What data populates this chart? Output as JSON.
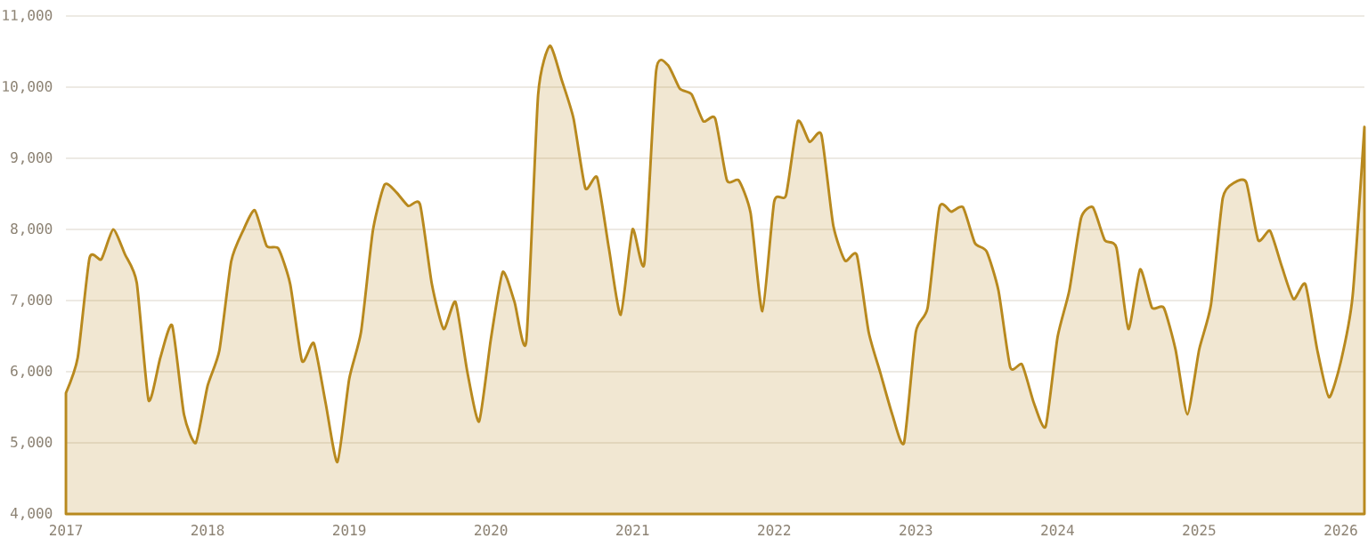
{
  "chart_data": {
    "type": "area",
    "color": "#b8891e",
    "grid": "y",
    "marker": "none",
    "line_style": "solid",
    "x": [
      "2017-01",
      "2017-02",
      "2017-03",
      "2017-04",
      "2017-05",
      "2017-06",
      "2017-07",
      "2017-08",
      "2017-09",
      "2017-10",
      "2017-11",
      "2017-12",
      "2018-01",
      "2018-02",
      "2018-03",
      "2018-04",
      "2018-05",
      "2018-06",
      "2018-07",
      "2018-08",
      "2018-09",
      "2018-10",
      "2018-11",
      "2018-12",
      "2019-01",
      "2019-02",
      "2019-03",
      "2019-04",
      "2019-05",
      "2019-06",
      "2019-07",
      "2019-08",
      "2019-09",
      "2019-10",
      "2019-11",
      "2019-12",
      "2020-01",
      "2020-02",
      "2020-03",
      "2020-04",
      "2020-05",
      "2020-06",
      "2020-07",
      "2020-08",
      "2020-09",
      "2020-10",
      "2020-11",
      "2020-12",
      "2021-01",
      "2021-02",
      "2021-03",
      "2021-04",
      "2021-05",
      "2021-06",
      "2021-07",
      "2021-08",
      "2021-09",
      "2021-10",
      "2021-11",
      "2021-12",
      "2022-01",
      "2022-02",
      "2022-03",
      "2022-04",
      "2022-05",
      "2022-06",
      "2022-07",
      "2022-08",
      "2022-09",
      "2022-10",
      "2022-11",
      "2022-12",
      "2023-01",
      "2023-02",
      "2023-03",
      "2023-04",
      "2023-05",
      "2023-06",
      "2023-07",
      "2023-08",
      "2023-09",
      "2023-10",
      "2023-11",
      "2023-12",
      "2024-01",
      "2024-02",
      "2024-03",
      "2024-04",
      "2024-05",
      "2024-06",
      "2024-07",
      "2024-08",
      "2024-09",
      "2024-10",
      "2024-11",
      "2024-12",
      "2025-01",
      "2025-02",
      "2025-03",
      "2025-04",
      "2025-05",
      "2025-06",
      "2025-07",
      "2025-08",
      "2025-09",
      "2025-10",
      "2025-11",
      "2025-12",
      "2026-01",
      "2026-02",
      "2026-03"
    ],
    "values": [
      5700,
      6200,
      7600,
      7580,
      8000,
      7650,
      7250,
      5600,
      6200,
      6650,
      5400,
      5000,
      5800,
      6300,
      7550,
      7980,
      8270,
      7770,
      7730,
      7230,
      6150,
      6400,
      5560,
      4730,
      5900,
      6560,
      7980,
      8630,
      8520,
      8330,
      8350,
      7230,
      6600,
      6980,
      6000,
      5300,
      6460,
      7400,
      6980,
      6430,
      9890,
      10580,
      10100,
      9560,
      8580,
      8730,
      7730,
      6800,
      8000,
      7520,
      10230,
      10310,
      9980,
      9900,
      9520,
      9560,
      8690,
      8690,
      8230,
      6850,
      8390,
      8480,
      9520,
      9230,
      9330,
      8060,
      7560,
      7640,
      6560,
      5980,
      5400,
      5000,
      6560,
      6900,
      8310,
      8250,
      8310,
      7810,
      7690,
      7140,
      6060,
      6100,
      5560,
      5230,
      6480,
      7140,
      8160,
      8310,
      7850,
      7740,
      6600,
      7440,
      6900,
      6900,
      6310,
      5400,
      6310,
      6940,
      8440,
      8660,
      8660,
      7850,
      7980,
      7480,
      7020,
      7230,
      6310,
      5640,
      6140,
      7060,
      9440
    ],
    "xlim": [
      "2017-01",
      "2026-03"
    ],
    "xticks": [
      "2017",
      "2018",
      "2019",
      "2020",
      "2021",
      "2022",
      "2023",
      "2024",
      "2025",
      "2026"
    ],
    "ylim": [
      4000,
      11000
    ],
    "yticks": [
      {
        "value": 4000,
        "label": "4,000"
      },
      {
        "value": 5000,
        "label": "5,000"
      },
      {
        "value": 6000,
        "label": "6,000"
      },
      {
        "value": 7000,
        "label": "7,000"
      },
      {
        "value": 8000,
        "label": "8,000"
      },
      {
        "value": 9000,
        "label": "9,000"
      },
      {
        "value": 10000,
        "label": "10,000"
      },
      {
        "value": 11000,
        "label": "11,000"
      }
    ]
  }
}
